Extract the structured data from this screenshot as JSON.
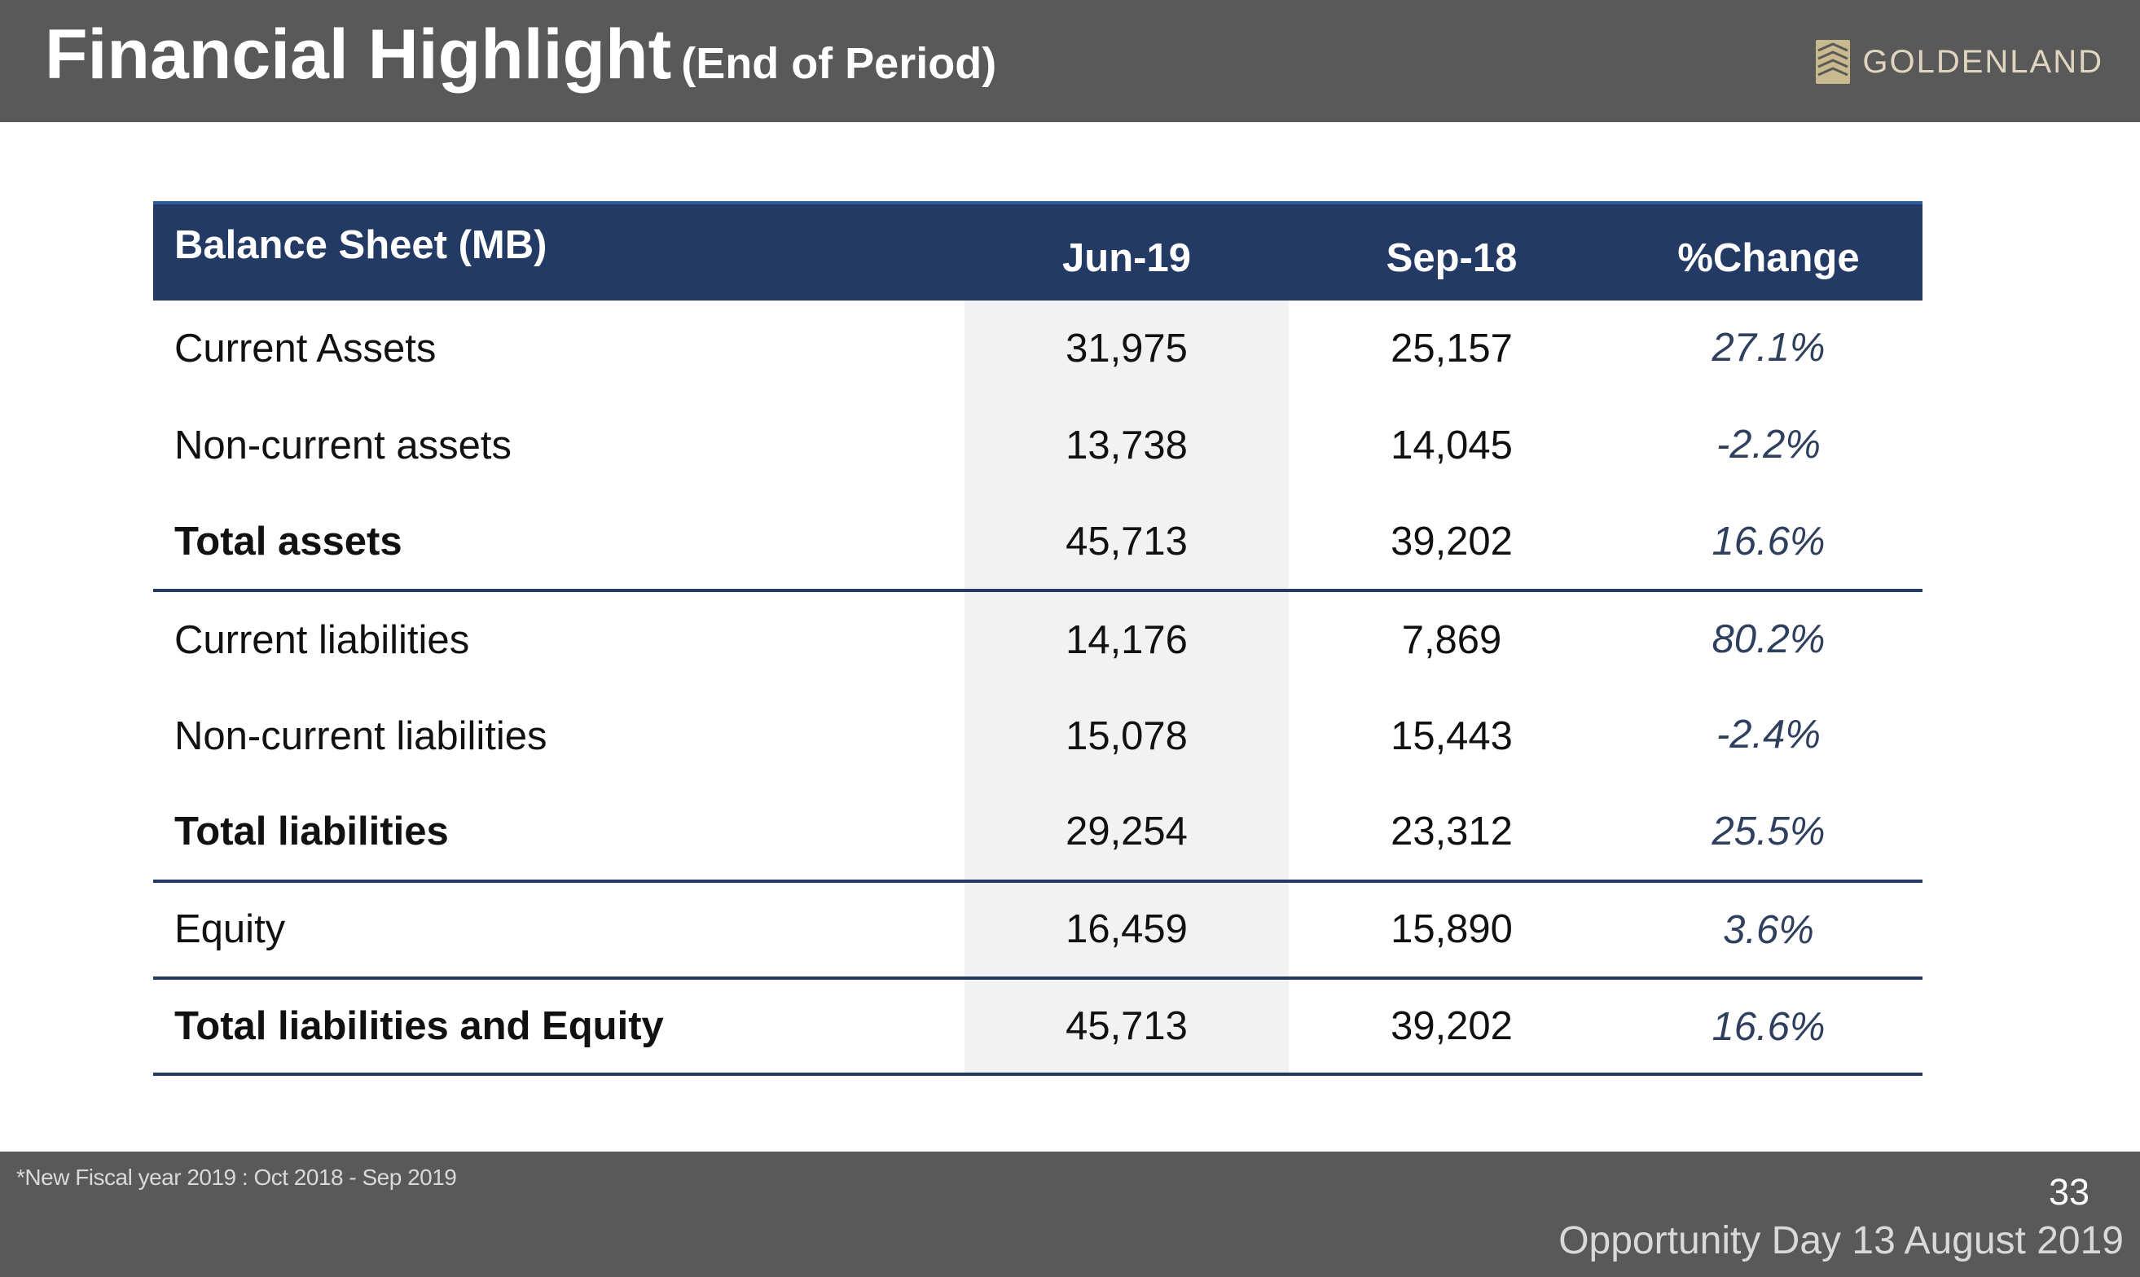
{
  "header": {
    "title": "Financial Highlight",
    "subtitle": "(End of Period)",
    "logo_text": "GOLDENLAND"
  },
  "table": {
    "headers": [
      "Balance Sheet (MB)",
      "Jun-19",
      "Sep-18",
      "%Change"
    ],
    "rows": [
      {
        "label": "Current Assets",
        "jun19": "31,975",
        "sep18": "25,157",
        "change": "27.1%"
      },
      {
        "label": "Non-current assets",
        "jun19": "13,738",
        "sep18": "14,045",
        "change": "-2.2%"
      },
      {
        "label": "Total assets",
        "jun19": "45,713",
        "sep18": "39,202",
        "change": "16.6%"
      },
      {
        "label": "Current liabilities",
        "jun19": "14,176",
        "sep18": "7,869",
        "change": "80.2%"
      },
      {
        "label": "Non-current liabilities",
        "jun19": "15,078",
        "sep18": "15,443",
        "change": "-2.4%"
      },
      {
        "label": "Total liabilities",
        "jun19": "29,254",
        "sep18": "23,312",
        "change": "25.5%"
      },
      {
        "label": "Equity",
        "jun19": "16,459",
        "sep18": "15,890",
        "change": "3.6%"
      },
      {
        "label": "Total liabilities and Equity",
        "jun19": "45,713",
        "sep18": "39,202",
        "change": "16.6%"
      }
    ]
  },
  "footer": {
    "footnote": "*New Fiscal year 2019 : Oct 2018 - Sep 2019",
    "page_number": "33",
    "event": "Opportunity Day 13 August 2019"
  },
  "colors": {
    "header_bar": "#595959",
    "table_header": "#223a64",
    "shaded_column": "#f2f2f2",
    "logo_gold": "#e0d6bf"
  },
  "icons": {
    "logo": "goldenland-logo-icon"
  }
}
